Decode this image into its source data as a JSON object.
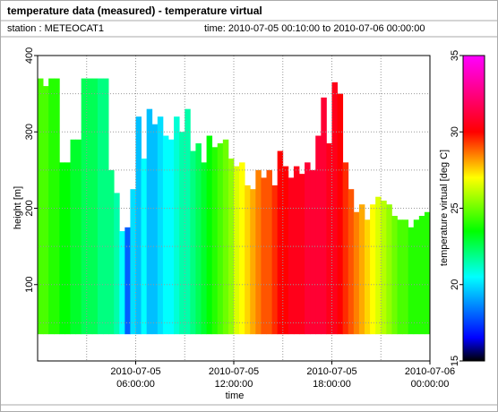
{
  "header": {
    "title": "temperature data (measured) - temperature virtual",
    "station": "station : METEOCAT1",
    "time_range": "time: 2010-07-05 00:10:00 to 2010-07-06 00:00:00"
  },
  "chart_data": {
    "type": "heatmap-columns",
    "x_label": "time",
    "y_label": "height [m]",
    "colorbar_label": "temperature virtual [deg C]",
    "x": [
      "2010-07-05 00:10:00",
      "2010-07-05 00:30:00",
      "2010-07-05 00:50:00",
      "2010-07-05 01:10:00",
      "2010-07-05 01:30:00",
      "2010-07-05 01:50:00",
      "2010-07-05 02:10:00",
      "2010-07-05 02:30:00",
      "2010-07-05 02:50:00",
      "2010-07-05 03:10:00",
      "2010-07-05 03:30:00",
      "2010-07-05 03:50:00",
      "2010-07-05 04:10:00",
      "2010-07-05 04:30:00",
      "2010-07-05 04:50:00",
      "2010-07-05 05:10:00",
      "2010-07-05 05:30:00",
      "2010-07-05 05:50:00",
      "2010-07-05 06:10:00",
      "2010-07-05 06:30:00",
      "2010-07-05 06:50:00",
      "2010-07-05 07:10:00",
      "2010-07-05 07:30:00",
      "2010-07-05 07:50:00",
      "2010-07-05 08:10:00",
      "2010-07-05 08:30:00",
      "2010-07-05 08:50:00",
      "2010-07-05 09:10:00",
      "2010-07-05 09:30:00",
      "2010-07-05 09:50:00",
      "2010-07-05 10:10:00",
      "2010-07-05 10:30:00",
      "2010-07-05 10:50:00",
      "2010-07-05 11:10:00",
      "2010-07-05 11:30:00",
      "2010-07-05 11:50:00",
      "2010-07-05 12:10:00",
      "2010-07-05 12:30:00",
      "2010-07-05 12:50:00",
      "2010-07-05 13:10:00",
      "2010-07-05 13:30:00",
      "2010-07-05 13:50:00",
      "2010-07-05 14:10:00",
      "2010-07-05 14:30:00",
      "2010-07-05 14:50:00",
      "2010-07-05 15:10:00",
      "2010-07-05 15:30:00",
      "2010-07-05 15:50:00",
      "2010-07-05 16:10:00",
      "2010-07-05 16:30:00",
      "2010-07-05 16:50:00",
      "2010-07-05 17:10:00",
      "2010-07-05 17:30:00",
      "2010-07-05 17:50:00",
      "2010-07-05 18:10:00",
      "2010-07-05 18:30:00",
      "2010-07-05 18:50:00",
      "2010-07-05 19:10:00",
      "2010-07-05 19:30:00",
      "2010-07-05 19:50:00",
      "2010-07-05 20:10:00",
      "2010-07-05 20:30:00",
      "2010-07-05 20:50:00",
      "2010-07-05 21:10:00",
      "2010-07-05 21:30:00",
      "2010-07-05 21:50:00",
      "2010-07-05 22:10:00",
      "2010-07-05 22:30:00",
      "2010-07-05 22:50:00",
      "2010-07-05 23:10:00",
      "2010-07-05 23:30:00",
      "2010-07-05 23:50:00"
    ],
    "bottom": 35,
    "values": [
      370,
      360,
      370,
      370,
      260,
      260,
      290,
      290,
      370,
      370,
      370,
      370,
      370,
      250,
      220,
      170,
      175,
      225,
      320,
      265,
      330,
      310,
      320,
      295,
      290,
      320,
      300,
      330,
      275,
      285,
      260,
      295,
      280,
      285,
      290,
      265,
      255,
      260,
      230,
      225,
      250,
      240,
      250,
      230,
      275,
      255,
      240,
      255,
      245,
      260,
      250,
      295,
      345,
      285,
      365,
      350,
      260,
      225,
      195,
      205,
      185,
      205,
      215,
      210,
      205,
      190,
      185,
      185,
      175,
      185,
      190,
      195
    ],
    "temperatures": [
      24.5,
      24.5,
      24,
      24,
      23.5,
      23.5,
      23,
      23,
      22.5,
      22.5,
      22.5,
      22,
      22,
      22,
      21.5,
      20.5,
      18,
      20,
      19.5,
      20.5,
      19.5,
      19.5,
      20,
      20.5,
      20.5,
      21,
      21.5,
      21.5,
      22,
      22.5,
      23,
      23.5,
      24,
      24.5,
      25,
      25.5,
      26.5,
      27,
      27.5,
      28,
      28.5,
      29,
      29,
      29.5,
      30,
      30,
      30.5,
      30.5,
      30.5,
      31,
      31,
      31,
      31,
      30.5,
      30.5,
      30,
      29.5,
      29,
      28.5,
      28,
      27.5,
      27,
      26.5,
      26,
      25.5,
      25,
      24.5,
      24.5,
      24,
      24,
      24,
      24
    ],
    "xlim": [
      "2010-07-05 00:00:00",
      "2010-07-06 00:00:00"
    ],
    "xticks": [
      {
        "value": "2010-07-05 06:00:00",
        "label": "2010-07-05\n06:00:00"
      },
      {
        "value": "2010-07-05 12:00:00",
        "label": "2010-07-05\n12:00:00"
      },
      {
        "value": "2010-07-05 18:00:00",
        "label": "2010-07-05\n18:00:00"
      },
      {
        "value": "2010-07-06 00:00:00",
        "label": "2010-07-06\n00:00:00"
      }
    ],
    "x_minor_grid": [
      "2010-07-05 03:00:00",
      "2010-07-05 09:00:00",
      "2010-07-05 15:00:00",
      "2010-07-05 21:00:00"
    ],
    "ylim": [
      0,
      400
    ],
    "yticks": [
      100,
      200,
      300,
      400
    ],
    "y_minor_grid": [
      50,
      150,
      250,
      350
    ],
    "colorbar_lim": [
      15,
      35
    ],
    "colorbar_ticks": [
      15,
      20,
      25,
      30,
      35
    ],
    "colormap": [
      {
        "value": 15,
        "color": "#000000"
      },
      {
        "value": 16.5,
        "color": "#0000ff"
      },
      {
        "value": 20.5,
        "color": "#00ffff"
      },
      {
        "value": 23.5,
        "color": "#00ff00"
      },
      {
        "value": 27,
        "color": "#ffff00"
      },
      {
        "value": 30,
        "color": "#ff0000"
      },
      {
        "value": 35,
        "color": "#ff00ff"
      }
    ],
    "grid": true
  }
}
